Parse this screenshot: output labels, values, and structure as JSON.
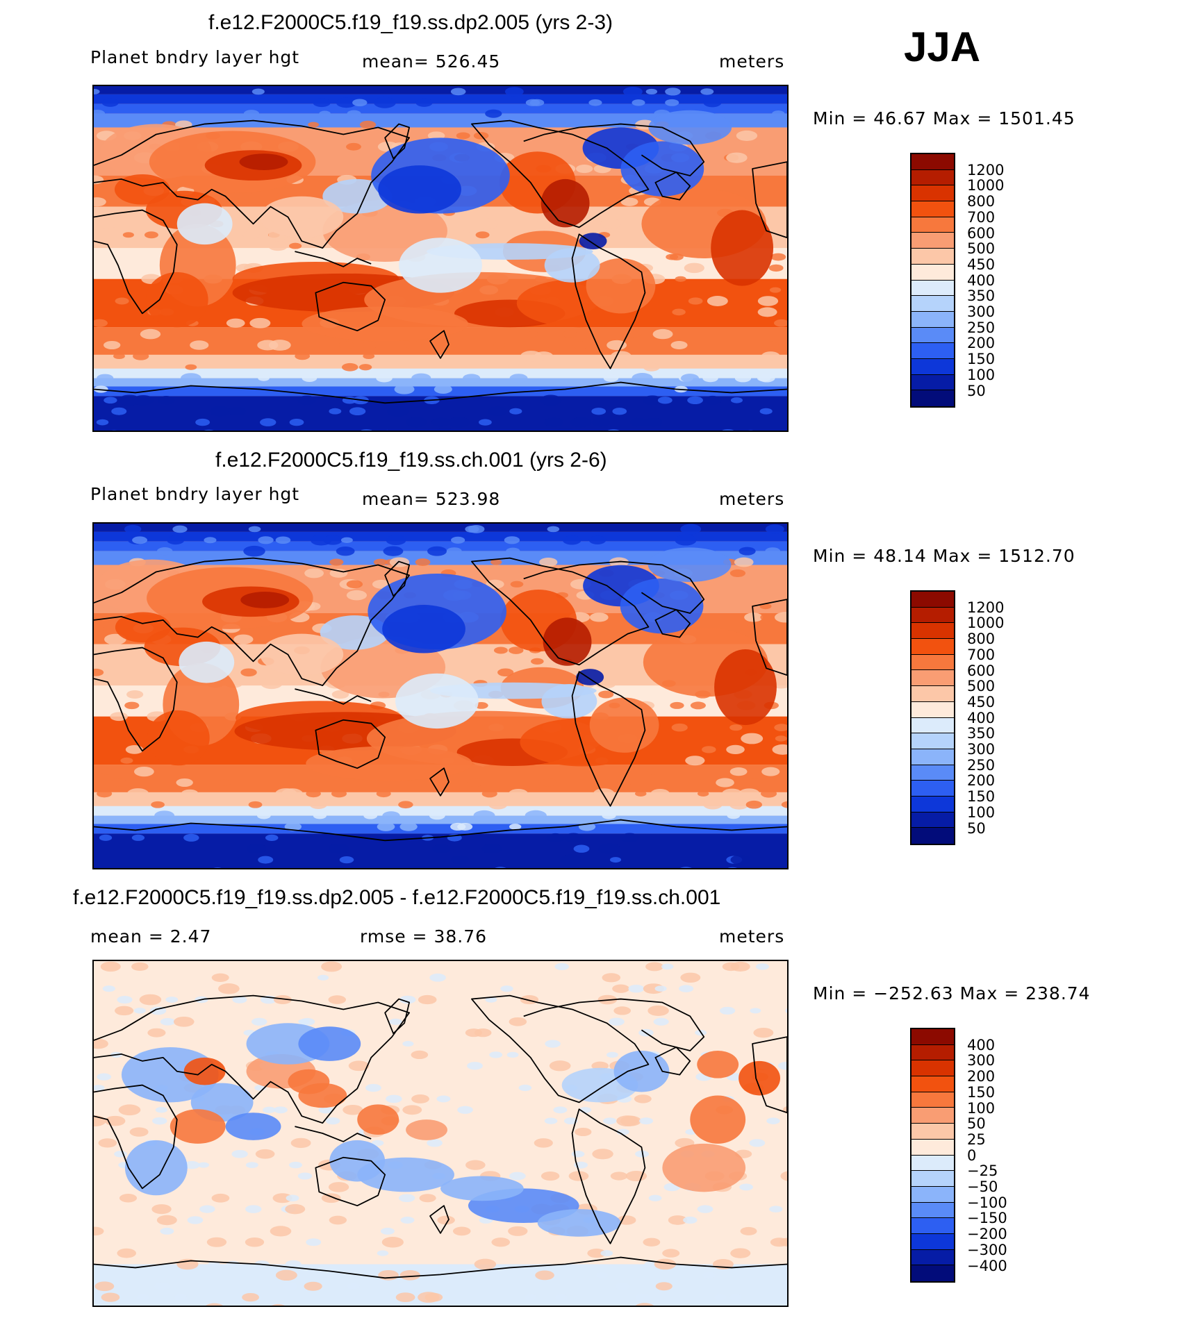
{
  "season": "JJA",
  "panels": [
    {
      "title": "f.e12.F2000C5.f19_f19.ss.dp2.005 (yrs 2-3)",
      "left_label": "Planet bndry layer hgt",
      "center_label": "mean=  526.45",
      "units": "meters",
      "minmax": "Min =   46.67 Max =  1501.45"
    },
    {
      "title": "f.e12.F2000C5.f19_f19.ss.ch.001 (yrs 2-6)",
      "left_label": "Planet bndry layer hgt",
      "center_label": "mean=  523.98",
      "units": "meters",
      "minmax": "Min =   48.14 Max =  1512.70"
    },
    {
      "title": "f.e12.F2000C5.f19_f19.ss.dp2.005 - f.e12.F2000C5.f19_f19.ss.ch.001",
      "left_label": "mean =     2.47",
      "center_label": "rmse =   38.76",
      "units": "meters",
      "minmax": "Min = −252.63 Max =  238.74"
    }
  ],
  "chart_data": [
    {
      "type": "heatmap",
      "variable": "Planet bndry layer hgt",
      "case": "f.e12.F2000C5.f19_f19.ss.dp2.005 (yrs 2-3)",
      "units": "meters",
      "mean": 526.45,
      "min": 46.67,
      "max": 1501.45,
      "contour_levels": [
        1200,
        1000,
        800,
        700,
        600,
        500,
        450,
        400,
        350,
        300,
        250,
        200,
        150,
        100,
        50
      ]
    },
    {
      "type": "heatmap",
      "variable": "Planet bndry layer hgt",
      "case": "f.e12.F2000C5.f19_f19.ss.ch.001 (yrs 2-6)",
      "units": "meters",
      "mean": 523.98,
      "min": 48.14,
      "max": 1512.7,
      "contour_levels": [
        1200,
        1000,
        800,
        700,
        600,
        500,
        450,
        400,
        350,
        300,
        250,
        200,
        150,
        100,
        50
      ]
    },
    {
      "type": "heatmap",
      "variable": "difference",
      "case": "f.e12.F2000C5.f19_f19.ss.dp2.005 - f.e12.F2000C5.f19_f19.ss.ch.001",
      "units": "meters",
      "mean": 2.47,
      "rmse": 38.76,
      "min": -252.63,
      "max": 238.74,
      "contour_levels": [
        400,
        300,
        200,
        150,
        100,
        50,
        25,
        0,
        -25,
        -50,
        -100,
        -150,
        -200,
        -300,
        -400
      ]
    }
  ],
  "colorbars": [
    {
      "ticks": [
        "1200",
        "1000",
        "800",
        "700",
        "600",
        "500",
        "450",
        "400",
        "350",
        "300",
        "250",
        "200",
        "150",
        "100",
        "50"
      ]
    },
    {
      "ticks": [
        "1200",
        "1000",
        "800",
        "700",
        "600",
        "500",
        "450",
        "400",
        "350",
        "300",
        "250",
        "200",
        "150",
        "100",
        "50"
      ]
    },
    {
      "ticks": [
        "400",
        "300",
        "200",
        "150",
        "100",
        "50",
        "25",
        "0",
        "−25",
        "−50",
        "−100",
        "−150",
        "−200",
        "−300",
        "−400"
      ]
    }
  ],
  "palette": [
    "#8c0a00",
    "#b51d00",
    "#d93300",
    "#f2520f",
    "#f7783d",
    "#f99d73",
    "#fcc7a8",
    "#feeadb",
    "#dcebfb",
    "#b5d3fb",
    "#8bb4fa",
    "#5a8bf7",
    "#2d5ff2",
    "#0d37d9",
    "#061ca6",
    "#020c7a"
  ],
  "land_color": "#000000"
}
